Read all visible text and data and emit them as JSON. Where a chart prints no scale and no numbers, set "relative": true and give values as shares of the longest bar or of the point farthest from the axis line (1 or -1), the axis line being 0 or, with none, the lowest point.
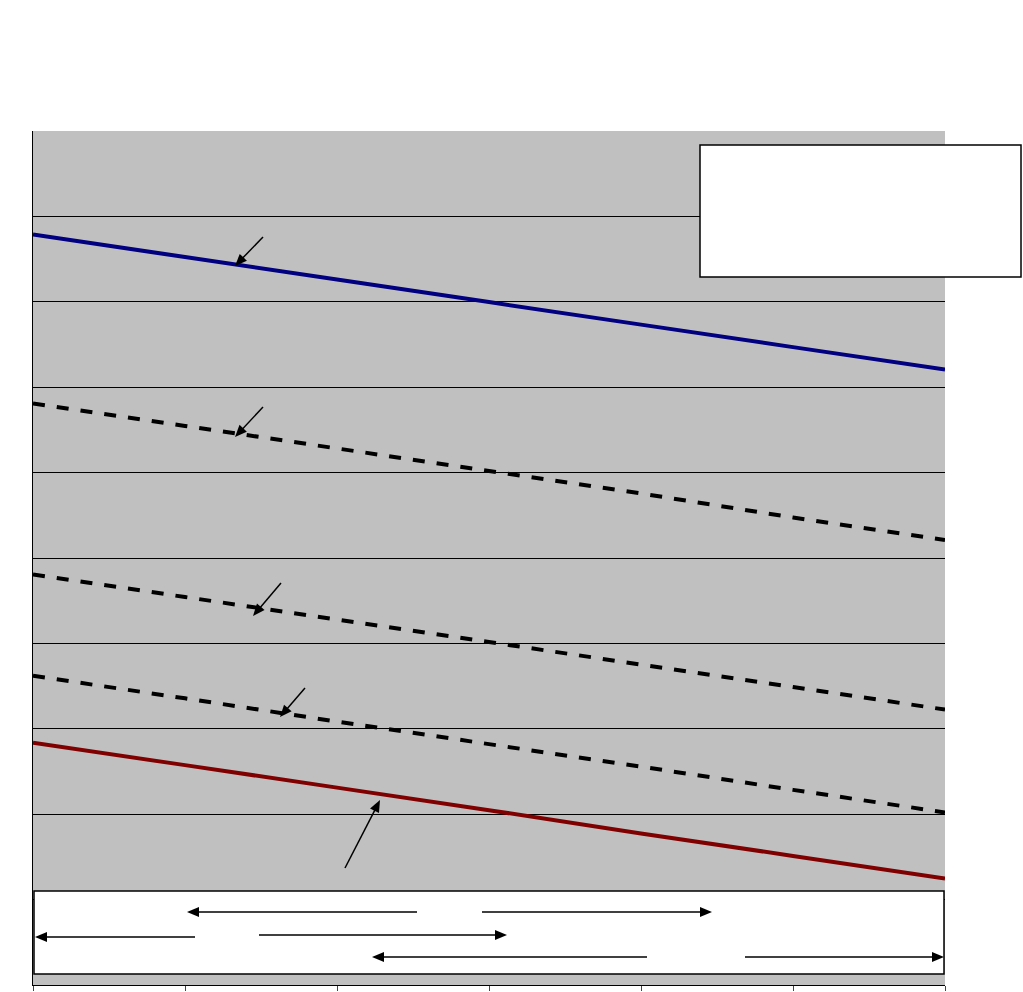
{
  "chart_data": {
    "type": "line",
    "relative": true,
    "categories": [
      null,
      null,
      null,
      null,
      null,
      null,
      null
    ],
    "series": [
      {
        "color": "#000080",
        "line_style": "solid",
        "values": [
          1,
          0.97,
          0.94,
          0.91,
          0.88,
          0.85,
          0.82
        ]
      },
      {
        "color": "#000000",
        "line_style": "dashed",
        "values": [
          0.775,
          0.745,
          0.715,
          0.685,
          0.655,
          0.623,
          0.593
        ]
      },
      {
        "color": "#000000",
        "line_style": "dashed",
        "values": [
          0.547,
          0.517,
          0.487,
          0.457,
          0.427,
          0.397,
          0.367
        ]
      },
      {
        "color": "#000000",
        "line_style": "dashed",
        "values": [
          0.412,
          0.382,
          0.351,
          0.321,
          0.291,
          0.26,
          0.23
        ]
      },
      {
        "color": "#800000",
        "line_style": "solid",
        "values": [
          0.323,
          0.293,
          0.263,
          0.233,
          0.202,
          0.172,
          0.142
        ]
      }
    ],
    "grid": "y",
    "marker": "none"
  }
}
